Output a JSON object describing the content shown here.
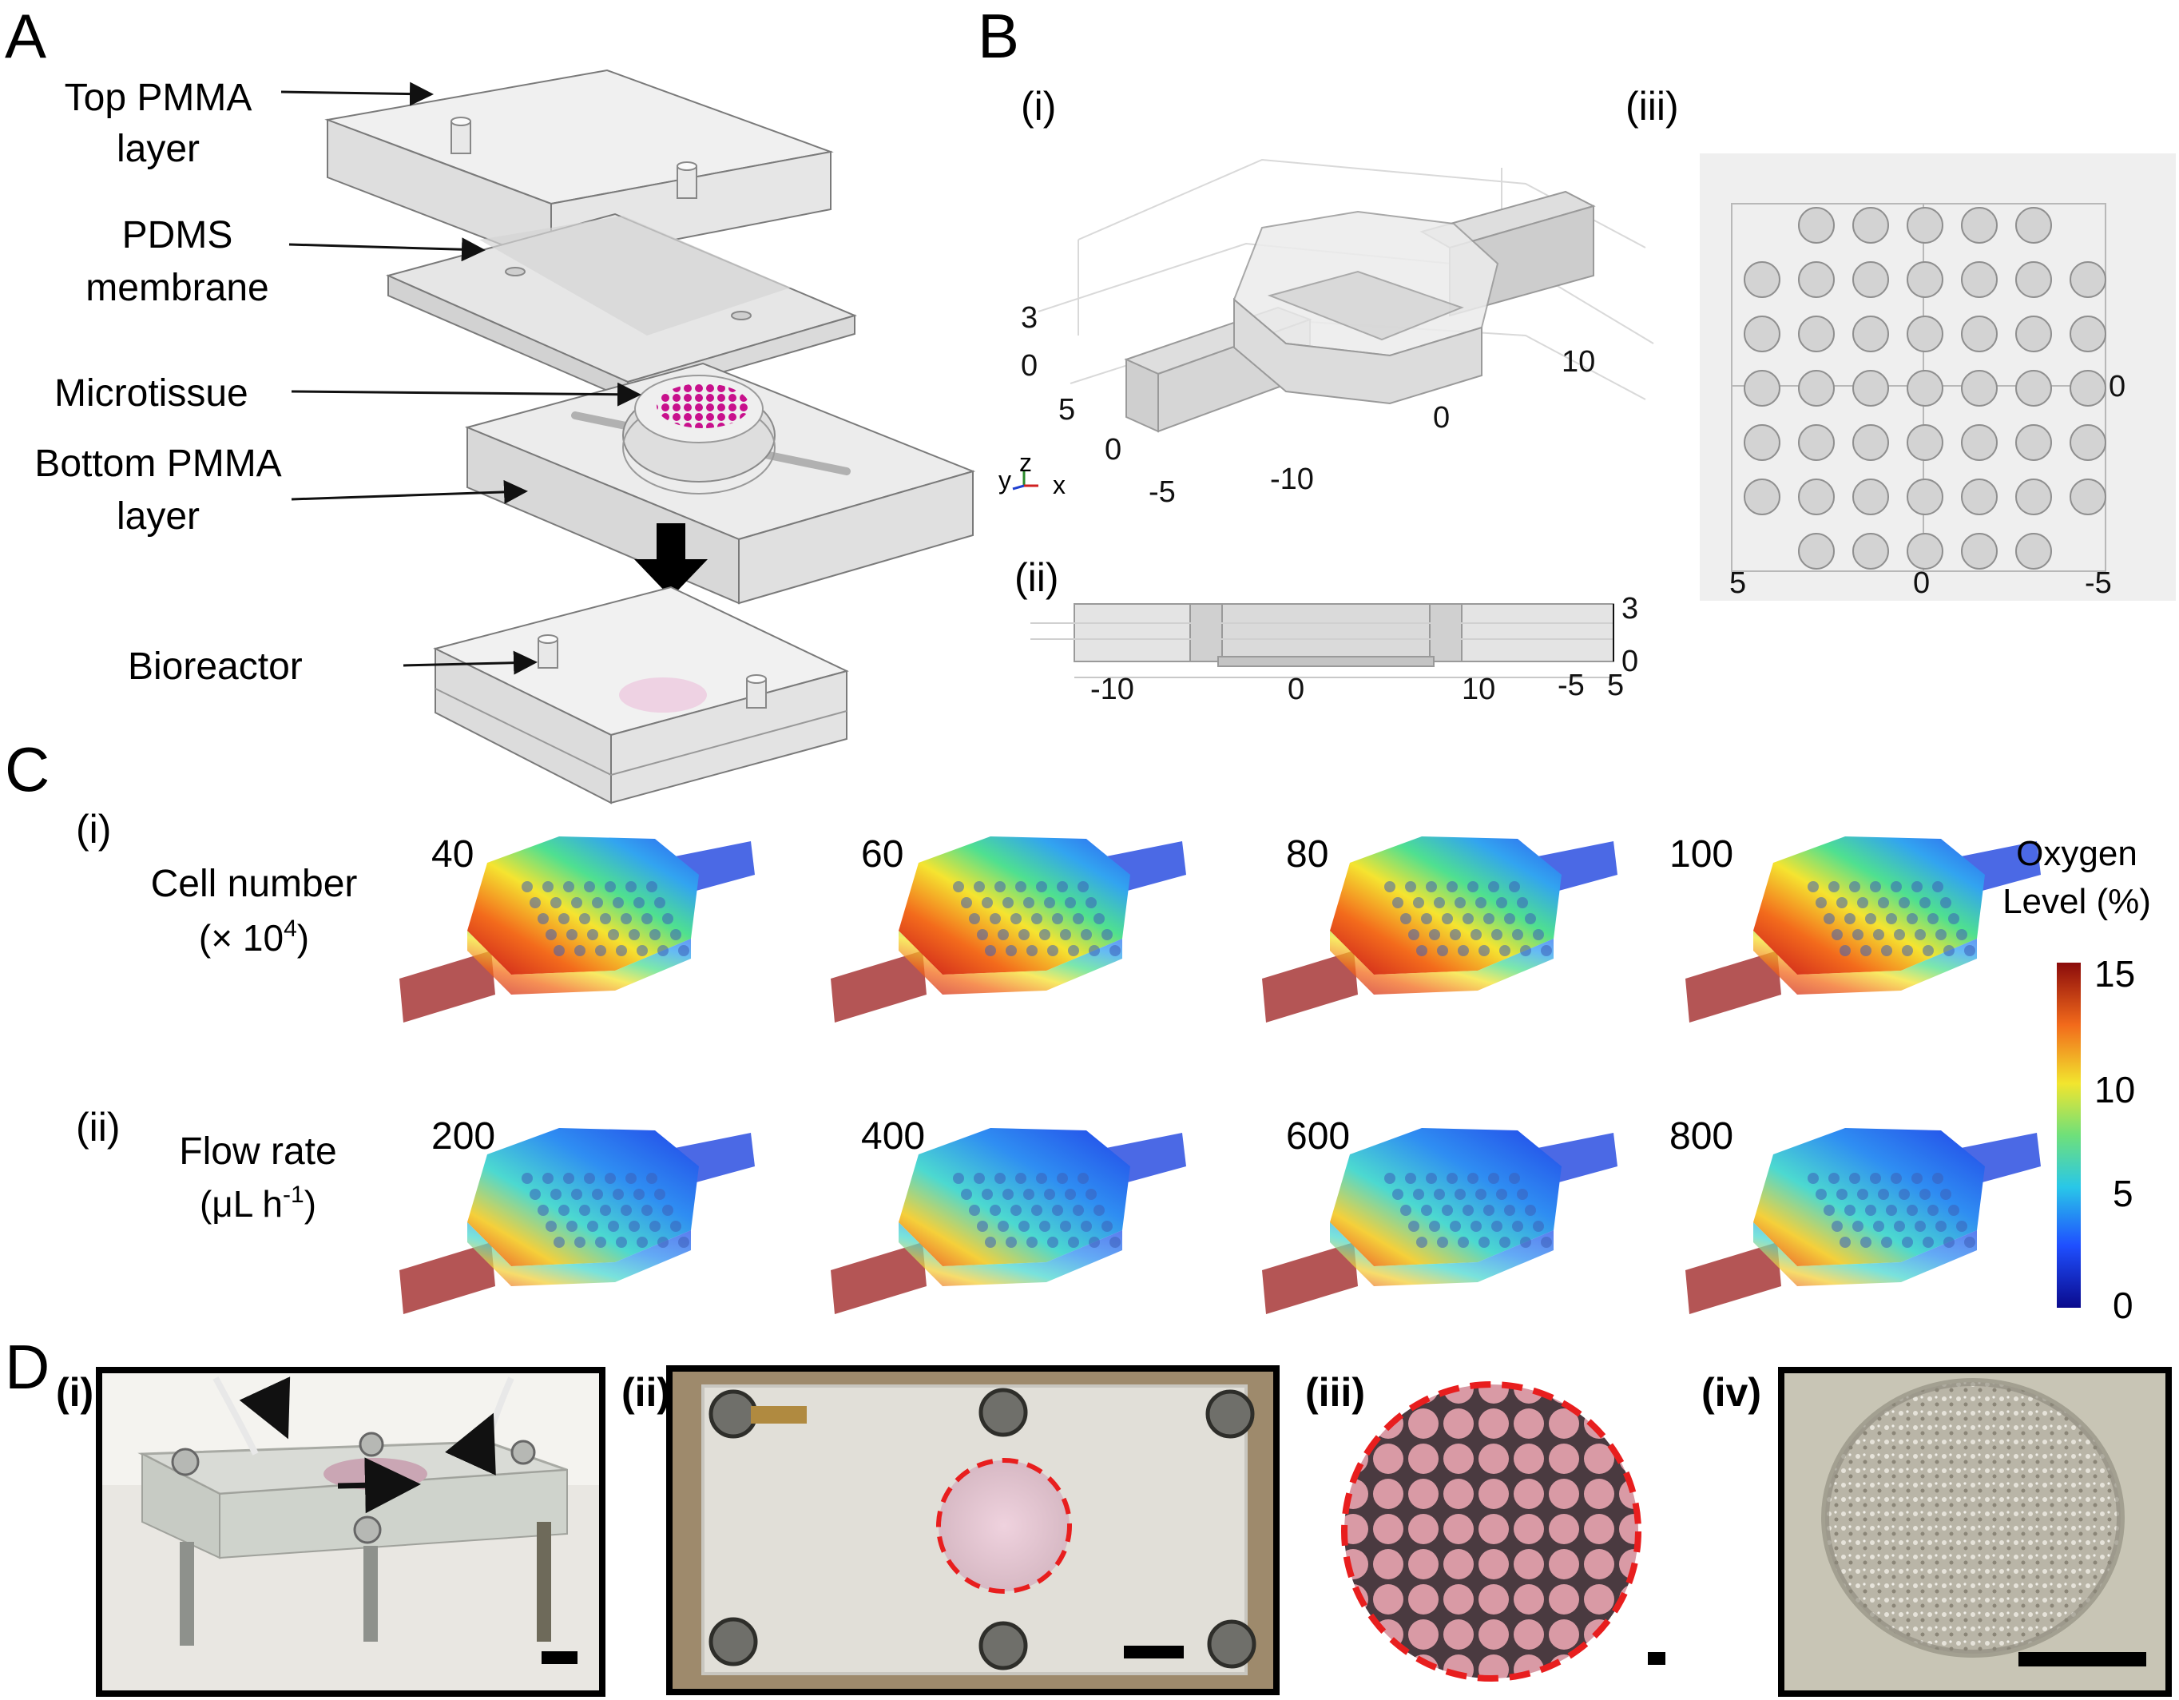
{
  "panels": {
    "A": {
      "letter": "A",
      "labels": {
        "top_pmma_1": "Top PMMA",
        "top_pmma_2": "layer",
        "pdms_1": "PDMS",
        "pdms_2": "membrane",
        "microtissue": "Microtissue",
        "bottom_pmma_1": "Bottom PMMA",
        "bottom_pmma_2": "layer",
        "bioreactor": "Bioreactor"
      }
    },
    "B": {
      "letter": "B",
      "sub_i": "(i)",
      "sub_ii": "(ii)",
      "sub_iii": "(iii)",
      "i_ticks": {
        "z3": "3",
        "z0": "0",
        "y5": "5",
        "y0": "0",
        "xm5": "-5",
        "xm10": "-10",
        "x0": "0",
        "x10": "10"
      },
      "i_axes": {
        "y": "y",
        "z": "z",
        "x": "x"
      },
      "ii_ticks": {
        "m10": "-10",
        "z0": "0",
        "p10": "10",
        "m5": "-5",
        "p5": "5",
        "r3": "3",
        "r0": "0"
      },
      "iii_ticks": {
        "b5": "5",
        "b0": "0",
        "bm5": "-5",
        "r0": "0"
      }
    },
    "C": {
      "letter": "C",
      "sub_i": "(i)",
      "sub_ii": "(ii)",
      "row_i_label_1": "Cell number",
      "row_i_label_2_pre": "(× 10",
      "row_i_label_2_sup": "4",
      "row_i_label_2_post": ")",
      "row_ii_label_1": "Flow rate",
      "row_ii_label_2_pre": "(μL h",
      "row_ii_label_2_sup": "-1",
      "row_ii_label_2_post": ")",
      "row_i_values": [
        "40",
        "60",
        "80",
        "100"
      ],
      "row_ii_values": [
        "200",
        "400",
        "600",
        "800"
      ],
      "colorbar": {
        "title_1": "Oxygen",
        "title_2": "Level  (%)",
        "ticks": [
          "15",
          "10",
          "5",
          "0"
        ]
      }
    },
    "D": {
      "letter": "D",
      "sub_i": "(i)",
      "sub_ii": "(ii)",
      "sub_iii": "(iii)",
      "sub_iv": "(iv)"
    }
  }
}
